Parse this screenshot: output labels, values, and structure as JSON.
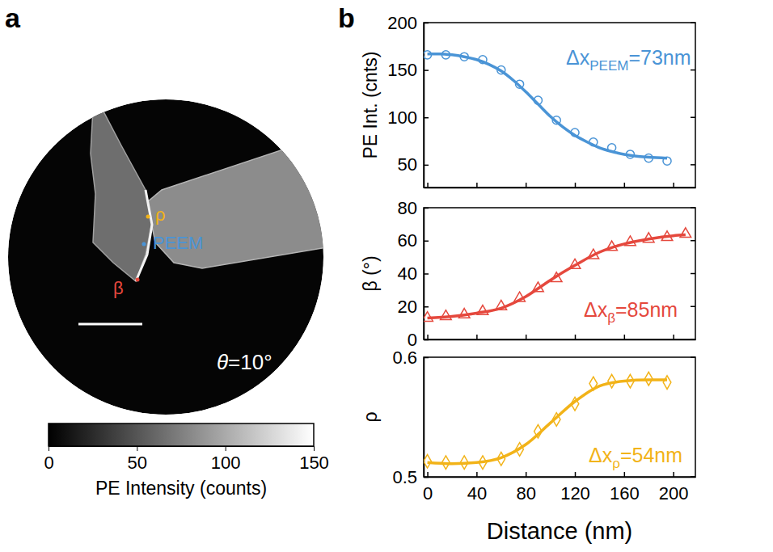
{
  "chart_data": [
    {
      "type": "image",
      "label": "a",
      "annotations": [
        {
          "text": "ρ",
          "color": "#f2b318"
        },
        {
          "text": "PEEM",
          "color": "#4a94d6"
        },
        {
          "text": "β",
          "color": "#e5483d"
        },
        {
          "text": "θ=10°",
          "color": "#ffffff"
        }
      ],
      "colorbar": {
        "label": "PE Intensity (counts)",
        "range": [
          0,
          150
        ],
        "ticks": [
          0,
          50,
          100,
          150
        ]
      }
    },
    {
      "type": "scatter",
      "label": "b",
      "ylabel": "PE Int. (cnts)",
      "xlim": [
        -3,
        218
      ],
      "ylim": [
        26,
        200
      ],
      "xticks": [
        0,
        40,
        80,
        120,
        160,
        200
      ],
      "yticks": [
        50,
        100,
        150,
        200
      ],
      "tick_labels": "y",
      "annotation": {
        "text": "Δx",
        "subscript": "PEEM",
        "suffix": "=73nm",
        "color": "#4a94d6"
      },
      "series": [
        {
          "type": "scatter",
          "marker": "circle",
          "color": "#4a94d6",
          "x": [
            0,
            15,
            30,
            45,
            60,
            75,
            90,
            105,
            120,
            135,
            150,
            165,
            180,
            195
          ],
          "values": [
            166,
            166,
            164,
            161,
            150,
            135,
            118,
            97,
            84,
            74,
            68,
            61,
            57,
            54
          ]
        },
        {
          "type": "line",
          "line_style": "solid",
          "color": "#4a94d6",
          "x": [
            0,
            10,
            20,
            30,
            40,
            50,
            60,
            70,
            80,
            90,
            100,
            110,
            120,
            130,
            140,
            150,
            160,
            170,
            180,
            195
          ],
          "values": [
            167,
            167,
            166,
            164,
            161,
            156,
            149,
            139,
            127,
            114,
            101,
            90,
            81,
            74,
            68,
            64,
            61,
            59,
            58,
            57
          ]
        }
      ]
    },
    {
      "type": "scatter",
      "ylabel": "β (°)",
      "xlim": [
        -3,
        218
      ],
      "ylim": [
        0,
        80
      ],
      "xticks": [
        0,
        40,
        80,
        120,
        160,
        200
      ],
      "yticks": [
        0,
        20,
        40,
        60,
        80
      ],
      "tick_labels": "y",
      "annotation": {
        "text": "Δx",
        "subscript": "β",
        "suffix": "=85nm",
        "color": "#e5483d"
      },
      "series": [
        {
          "type": "scatter",
          "marker": "triangle",
          "color": "#e5483d",
          "x": [
            0,
            15,
            30,
            45,
            60,
            75,
            90,
            105,
            120,
            135,
            150,
            165,
            180,
            195,
            210
          ],
          "values": [
            13,
            14,
            15,
            17,
            20,
            25,
            31,
            37,
            45,
            51,
            56,
            59,
            61,
            62,
            64
          ]
        },
        {
          "type": "line",
          "line_style": "solid",
          "color": "#e5483d",
          "x": [
            0,
            20,
            40,
            60,
            80,
            100,
            120,
            140,
            160,
            180,
            200,
            210
          ],
          "values": [
            13,
            14,
            16,
            19,
            26,
            36,
            45,
            53,
            58,
            61,
            63,
            63.5
          ]
        }
      ]
    },
    {
      "type": "scatter",
      "ylabel": "ρ",
      "xlabel": "Distance (nm)",
      "xlim": [
        -3,
        218
      ],
      "ylim": [
        0.5,
        0.6
      ],
      "xticks": [
        0,
        40,
        80,
        120,
        160,
        200
      ],
      "yticks": [
        0.5,
        0.6
      ],
      "annotation": {
        "text": "Δx",
        "subscript": "ρ",
        "suffix": "=54nm",
        "color": "#f2b318"
      },
      "series": [
        {
          "type": "scatter",
          "marker": "diamond",
          "color": "#f2b318",
          "x": [
            0,
            15,
            30,
            45,
            60,
            75,
            90,
            105,
            120,
            135,
            150,
            165,
            180,
            195
          ],
          "values": [
            0.513,
            0.512,
            0.512,
            0.512,
            0.515,
            0.523,
            0.538,
            0.548,
            0.561,
            0.578,
            0.58,
            0.58,
            0.582,
            0.579
          ]
        },
        {
          "type": "line",
          "line_style": "solid",
          "color": "#f2b318",
          "x": [
            0,
            20,
            40,
            60,
            80,
            100,
            120,
            140,
            160,
            180,
            195
          ],
          "values": [
            0.512,
            0.511,
            0.512,
            0.516,
            0.527,
            0.545,
            0.563,
            0.576,
            0.58,
            0.581,
            0.581
          ]
        }
      ]
    }
  ]
}
